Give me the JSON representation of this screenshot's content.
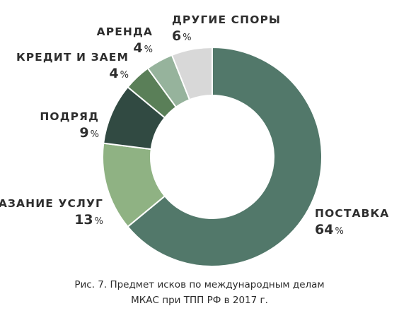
{
  "chart_data": {
    "type": "pie",
    "variant": "donut",
    "categories": [
      "ПОСТАВКА",
      "ОКАЗАНИЕ УСЛУГ",
      "ПОДРЯД",
      "КРЕДИТ И ЗАЕМ",
      "АРЕНДА",
      "ДРУГИЕ СПОРЫ"
    ],
    "values": [
      64,
      13,
      9,
      4,
      4,
      6
    ],
    "unit": "%",
    "colors": [
      "#52786a",
      "#8fb283",
      "#314a42",
      "#5a7f58",
      "#96b39c",
      "#d8d8d8"
    ],
    "legend": "none"
  },
  "caption": {
    "line1": "Рис. 7. Предмет исков по международным делам",
    "line2": "МКАС при ТПП РФ в 2017 г."
  }
}
